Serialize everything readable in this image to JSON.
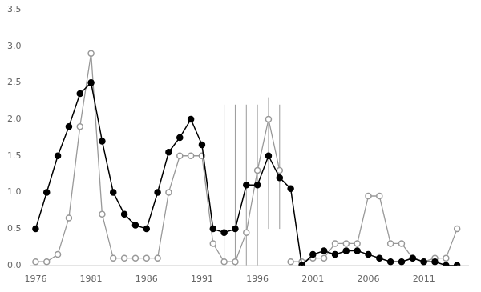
{
  "chart_data": {
    "type": "line",
    "grid": false,
    "xlim": [
      1975.5,
      2015
    ],
    "xticks": [
      1976,
      1981,
      1986,
      1991,
      1996,
      2001,
      2006,
      2011
    ],
    "ylim": [
      0,
      3.5
    ],
    "yticks": [
      {
        "value": 0,
        "label": "0.0"
      },
      {
        "value": 0.5,
        "label": "0.5"
      },
      {
        "value": 1,
        "label": "1.0"
      },
      {
        "value": 1.5,
        "label": "1.5"
      },
      {
        "value": 2,
        "label": "2.0"
      },
      {
        "value": 2.5,
        "label": "2.5"
      },
      {
        "value": 3,
        "label": "3.0"
      },
      {
        "value": 3.5,
        "label": "3.5"
      }
    ],
    "series": [
      {
        "color": "#999999",
        "marker": "open_circle",
        "x": [
          1976,
          1977,
          1978,
          1979,
          1980,
          1981,
          1982,
          1983,
          1984,
          1985,
          1986,
          1987,
          1988,
          1989,
          1990,
          1991,
          1992,
          1993,
          1994,
          1995,
          1996,
          1997,
          1998
        ],
        "values": [
          0.05,
          0.05,
          0.15,
          0.65,
          1.9,
          2.9,
          0.7,
          0.1,
          0.1,
          0.1,
          0.1,
          0.1,
          1.0,
          1.5,
          1.5,
          1.5,
          0.3,
          0.05,
          0.05,
          0.45,
          1.3,
          2.0,
          1.3
        ]
      },
      {
        "color": "#999999",
        "marker": "open_circle",
        "x": [
          1999,
          2000,
          2001,
          2002,
          2003,
          2004,
          2005,
          2006,
          2007,
          2008,
          2009,
          2010,
          2011,
          2012,
          2013,
          2014
        ],
        "values": [
          0.05,
          0.05,
          0.1,
          0.1,
          0.3,
          0.3,
          0.3,
          0.95,
          0.95,
          0.3,
          0.3,
          0.1,
          0.05,
          0.1,
          0.1,
          0.5
        ]
      },
      {
        "color": "#000000",
        "marker": "circle",
        "x": [
          1976,
          1977,
          1978,
          1979,
          1980,
          1981,
          1982,
          1983,
          1984,
          1985,
          1986,
          1987,
          1988,
          1989,
          1990,
          1991,
          1992,
          1993,
          1994,
          1995,
          1996,
          1997,
          1998,
          1999,
          2000,
          2001,
          2002,
          2003,
          2004,
          2005,
          2006,
          2007,
          2008,
          2009,
          2010,
          2011,
          2012,
          2013,
          2014
        ],
        "values": [
          0.5,
          1.0,
          1.5,
          1.9,
          2.35,
          2.5,
          1.7,
          1.0,
          0.7,
          0.55,
          0.5,
          1.0,
          1.55,
          1.75,
          2.0,
          1.65,
          0.5,
          0.45,
          0.5,
          1.1,
          1.1,
          1.5,
          1.2,
          1.05,
          0.0,
          0.15,
          0.2,
          0.15,
          0.2,
          0.2,
          0.15,
          0.1,
          0.05,
          0.05,
          0.1,
          0.05,
          0.05,
          0.0,
          0.0
        ]
      },
      {
        "type": "error_bar",
        "color": "#999999",
        "x": [
          1993,
          1994,
          1995,
          1996,
          1997,
          1998
        ],
        "low": [
          0.0,
          0.0,
          0.0,
          0.0,
          0.5,
          0.5
        ],
        "high": [
          2.2,
          2.2,
          2.2,
          2.2,
          2.3,
          2.2
        ]
      }
    ]
  }
}
